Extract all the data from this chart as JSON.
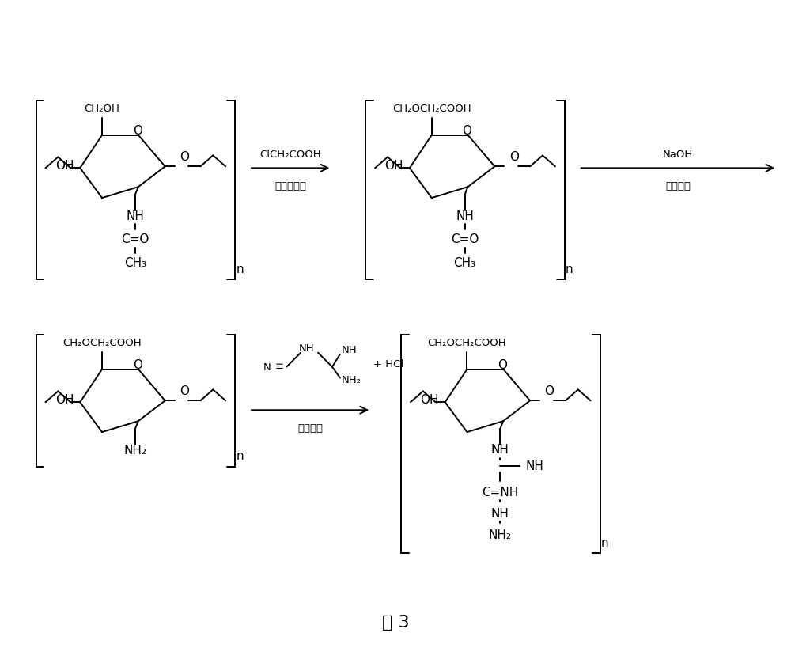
{
  "background_color": "#ffffff",
  "title": "式 3",
  "title_fontsize": 16,
  "r1_top": "ClCH₂COOH",
  "r1_bot": "罧甲基反应",
  "r2_top": "NaOH",
  "r2_bot": "脱乙酰化",
  "r3_bot": "加成反应",
  "lw": 1.4,
  "fs": 11,
  "fs_sm": 9.5
}
